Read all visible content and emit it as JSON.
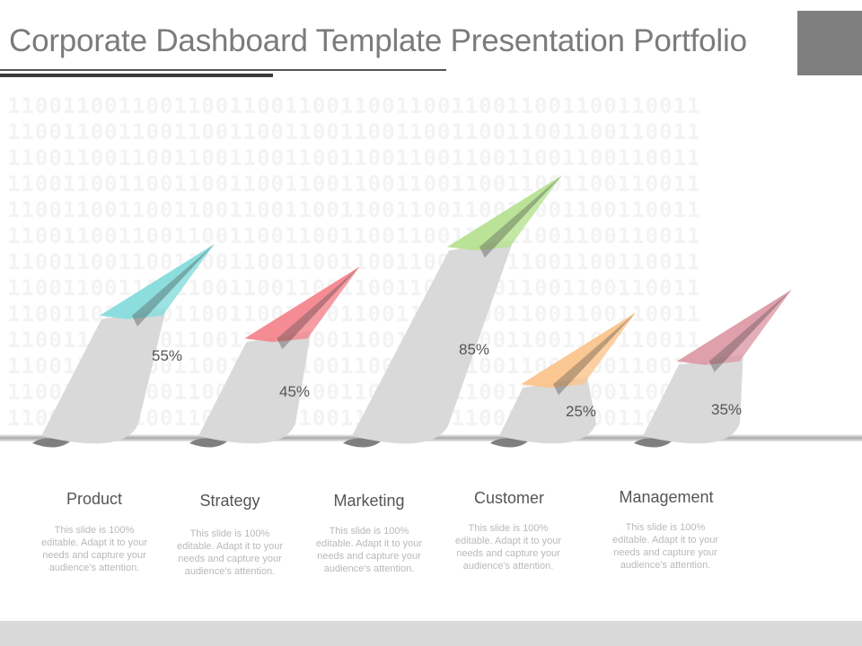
{
  "title": "Corporate Dashboard Template Presentation Portfolio",
  "background_text": "11001100110011001100110011001100110011001100110011",
  "colors": {
    "ribbon": "#d9d9d9",
    "ribbon_shadow": "#7f7f7f",
    "value_text": "#555555"
  },
  "chart_data": {
    "type": "bar",
    "categories": [
      "Product",
      "Strategy",
      "Marketing",
      "Customer",
      "Management"
    ],
    "values": [
      55,
      45,
      85,
      25,
      35
    ],
    "value_labels": [
      "55%",
      "45%",
      "85%",
      "25%",
      "35%"
    ],
    "unit": "%",
    "series_colors": [
      "#86dcdc",
      "#f4858d",
      "#b7e291",
      "#fbc48c",
      "#dd9aa6"
    ],
    "icon": "paper-plane-icon"
  },
  "items": [
    {
      "label": "Product",
      "description": "This slide is 100% editable. Adapt it to your needs and capture your audience's attention."
    },
    {
      "label": "Strategy",
      "description": "This slide is 100% editable. Adapt it to your needs and capture your audience's attention."
    },
    {
      "label": "Marketing",
      "description": "This slide is 100% editable. Adapt it to your needs and capture your audience's attention."
    },
    {
      "label": "Customer",
      "description": "This slide is 100% editable. Adapt it to your needs and capture your audience's attention."
    },
    {
      "label": "Management",
      "description": "This slide is 100% editable. Adapt it to your needs and capture your audience's attention."
    }
  ]
}
